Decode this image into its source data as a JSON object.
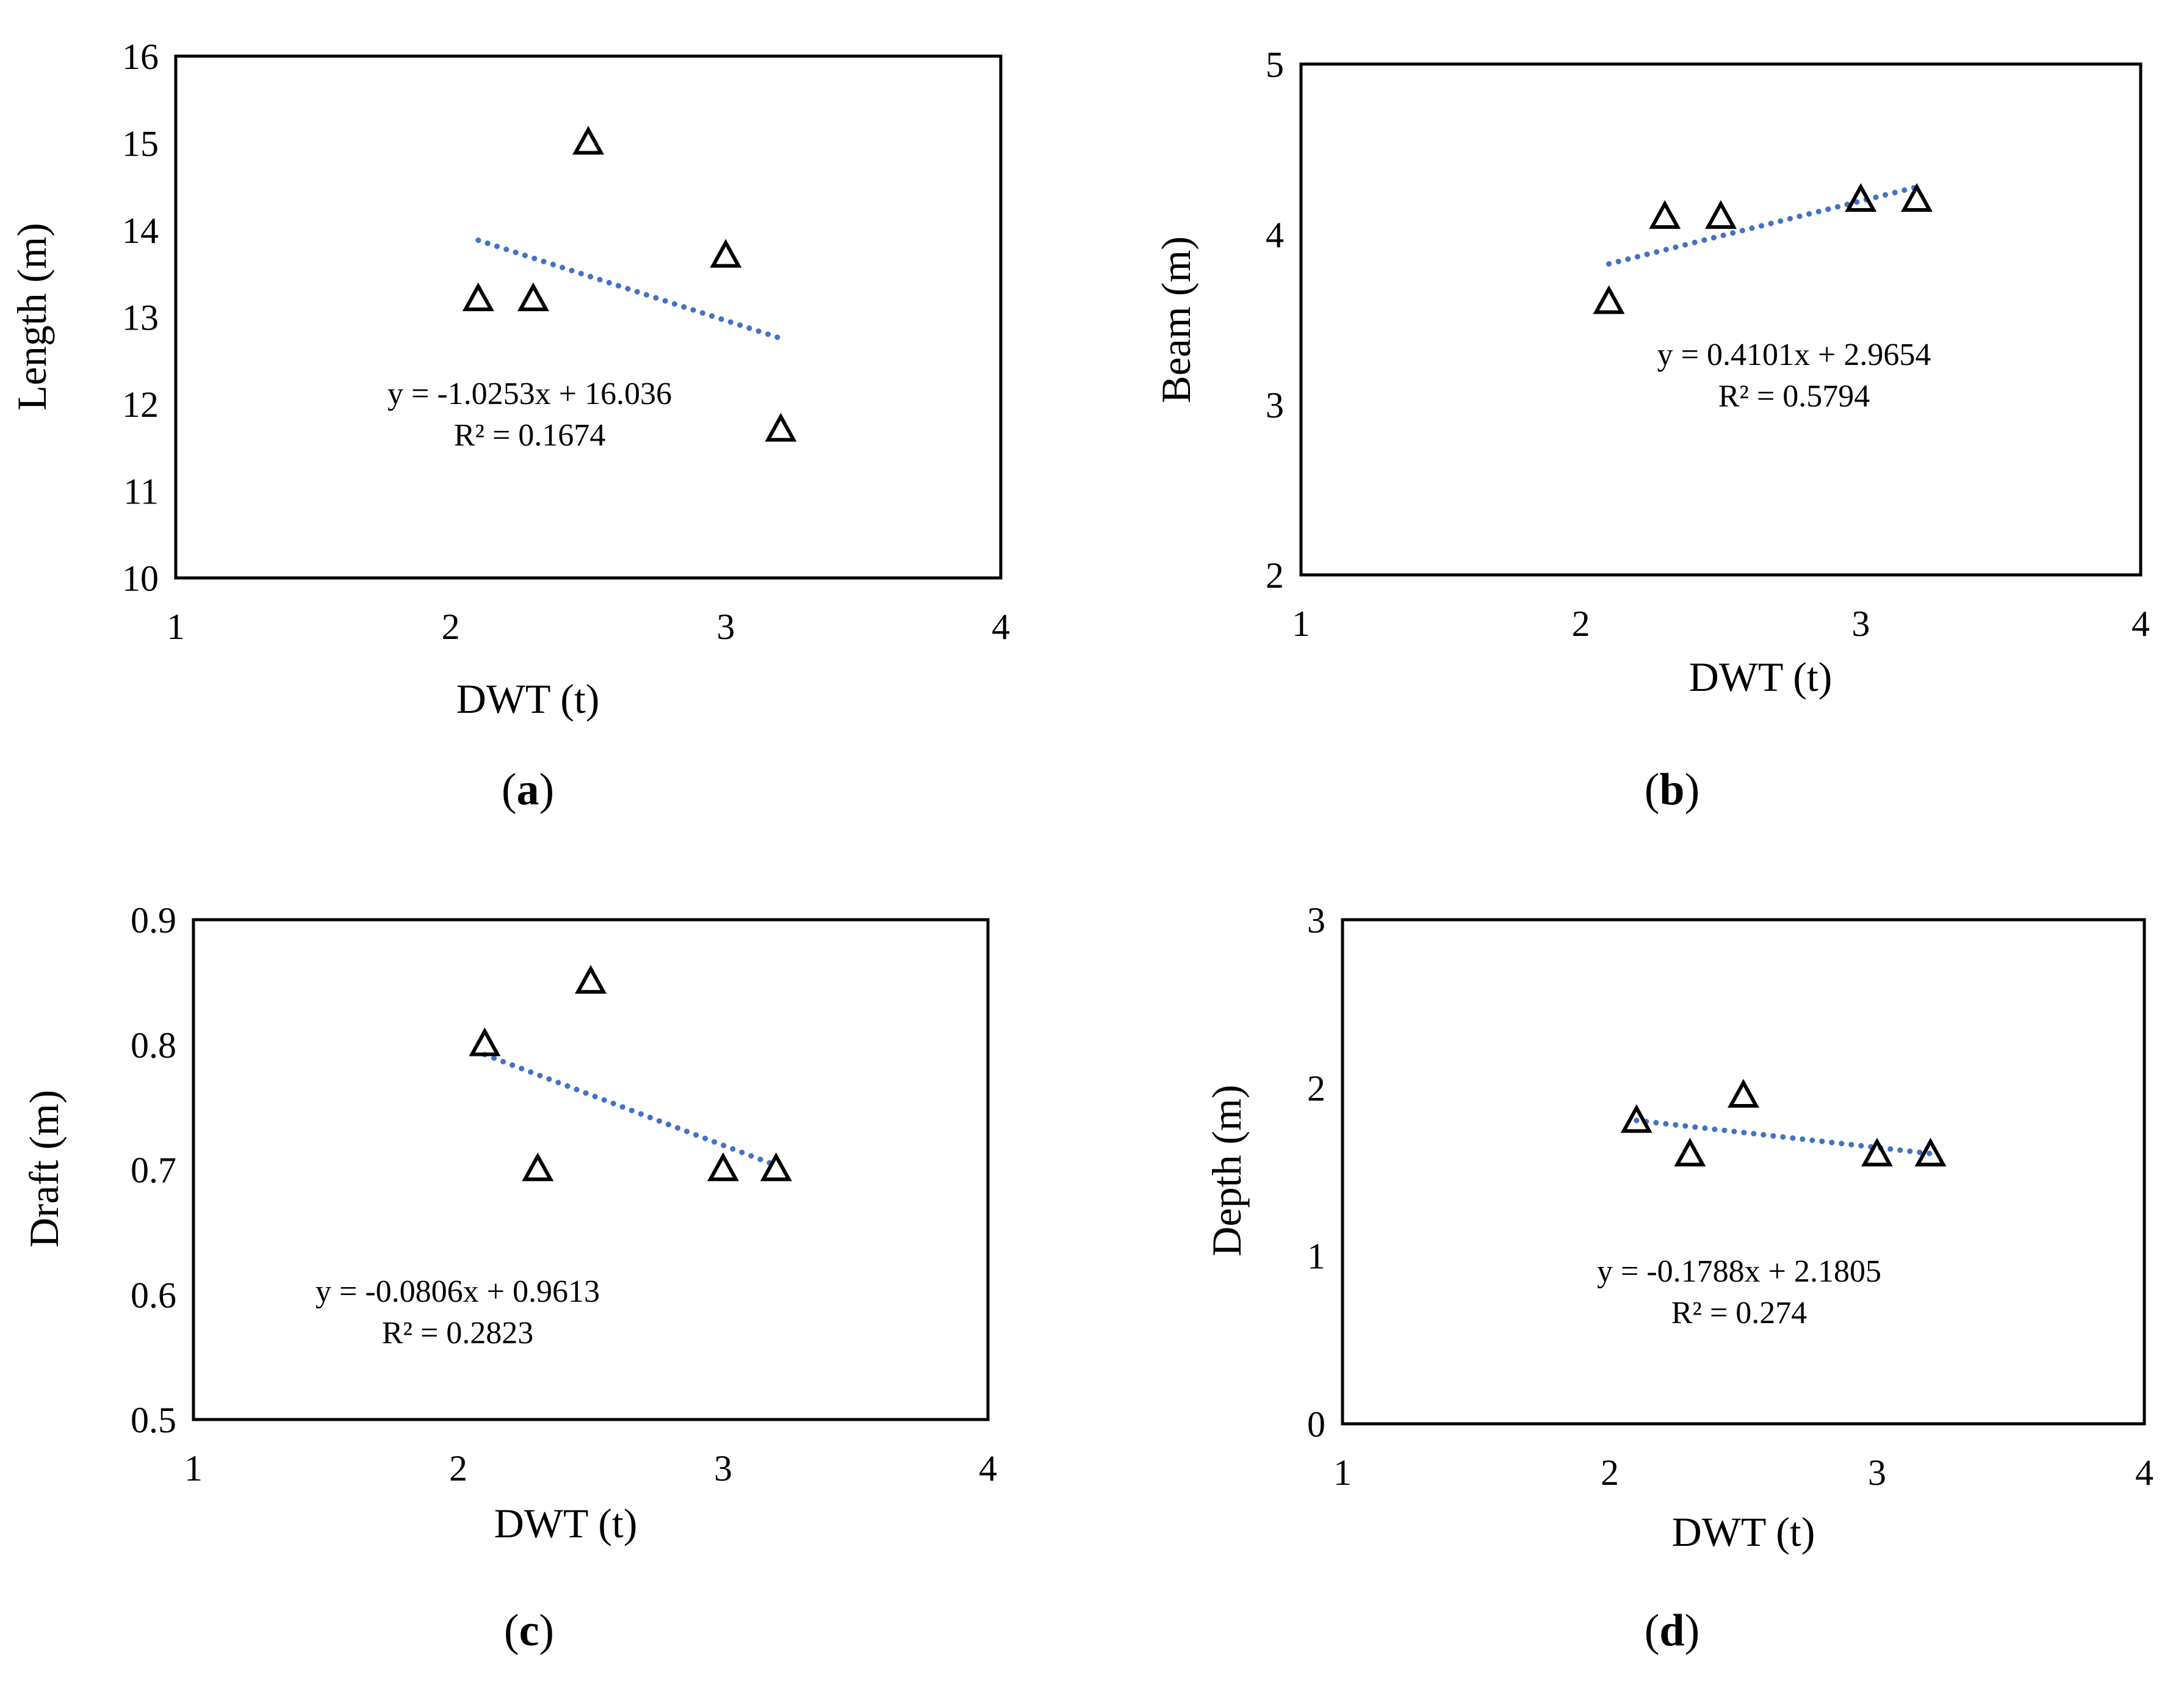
{
  "chart_data": [
    {
      "id": "a",
      "type": "scatter",
      "panel_label": "a",
      "xlabel": "DWT (t)",
      "ylabel": "Length (m)",
      "xlim": [
        1,
        4
      ],
      "ylim": [
        10,
        16
      ],
      "xticks": [
        1,
        2,
        3,
        4
      ],
      "yticks": [
        10,
        11,
        12,
        13,
        14,
        15,
        16
      ],
      "x": [
        2.1,
        2.3,
        2.5,
        3.0,
        3.2
      ],
      "y": [
        13.2,
        13.2,
        15.0,
        13.7,
        11.7
      ],
      "trendline": {
        "type": "linear",
        "slope": -1.0253,
        "intercept": 16.036,
        "x_range": [
          2.1,
          3.2
        ]
      },
      "equation": "y = -1.0253x + 16.036",
      "r2": "R² = 0.1674"
    },
    {
      "id": "b",
      "type": "scatter",
      "panel_label": "b",
      "xlabel": "DWT (t)",
      "ylabel": "Beam (m)",
      "xlim": [
        1,
        4
      ],
      "ylim": [
        2,
        5
      ],
      "xticks": [
        1,
        2,
        3,
        4
      ],
      "yticks": [
        2,
        3,
        4,
        5
      ],
      "x": [
        2.1,
        2.3,
        2.5,
        3.0,
        3.2
      ],
      "y": [
        3.6,
        4.1,
        4.1,
        4.2,
        4.2
      ],
      "trendline": {
        "type": "linear",
        "slope": 0.4101,
        "intercept": 2.9654,
        "x_range": [
          2.1,
          3.2
        ]
      },
      "equation": "y = 0.4101x + 2.9654",
      "r2": "R² = 0.5794"
    },
    {
      "id": "c",
      "type": "scatter",
      "panel_label": "c",
      "xlabel": "DWT (t)",
      "ylabel": "Draft (m)",
      "xlim": [
        1,
        4
      ],
      "ylim": [
        0.5,
        0.9
      ],
      "xticks": [
        1,
        2,
        3,
        4
      ],
      "yticks": [
        0.5,
        0.6,
        0.7,
        0.8,
        0.9
      ],
      "x": [
        2.1,
        2.3,
        2.5,
        3.0,
        3.2
      ],
      "y": [
        0.8,
        0.7,
        0.85,
        0.7,
        0.7
      ],
      "trendline": {
        "type": "linear",
        "slope": -0.0806,
        "intercept": 0.9613,
        "x_range": [
          2.1,
          3.2
        ]
      },
      "equation": "y = -0.0806x + 0.9613",
      "r2": "R² = 0.2823"
    },
    {
      "id": "d",
      "type": "scatter",
      "panel_label": "d",
      "xlabel": "DWT (t)",
      "ylabel": "Depth (m)",
      "xlim": [
        1,
        4
      ],
      "ylim": [
        0,
        3
      ],
      "xticks": [
        1,
        2,
        3,
        4
      ],
      "yticks": [
        0,
        1,
        2,
        3
      ],
      "x": [
        2.1,
        2.3,
        2.5,
        3.0,
        3.2
      ],
      "y": [
        1.8,
        1.6,
        1.95,
        1.6,
        1.6
      ],
      "trendline": {
        "type": "linear",
        "slope": -0.1788,
        "intercept": 2.1805,
        "x_range": [
          2.1,
          3.2
        ]
      },
      "equation": "y = -0.1788x + 2.1805",
      "r2": "R² = 0.274"
    }
  ],
  "colors": {
    "trendline": "#4472C4",
    "marker_stroke": "#000000",
    "frame": "#000000"
  }
}
